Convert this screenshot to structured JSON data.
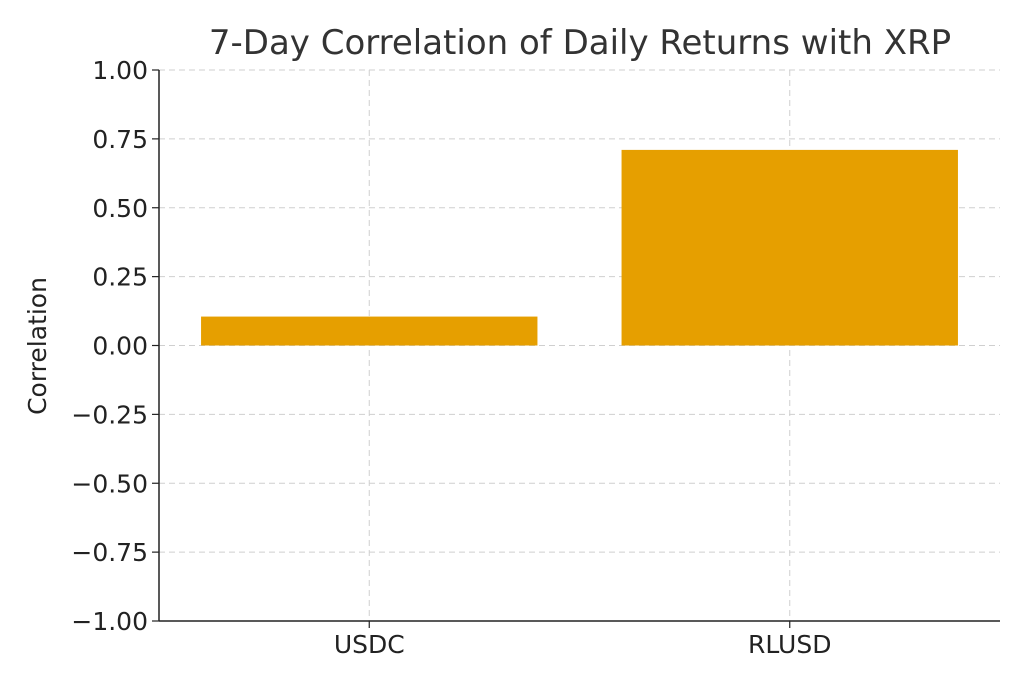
{
  "chart_data": {
    "type": "bar",
    "title": "7-Day Correlation of Daily Returns with XRP",
    "xlabel": "",
    "ylabel": "Correlation",
    "categories": [
      "USDC",
      "RLUSD"
    ],
    "values": [
      0.105,
      0.71
    ],
    "ylim": [
      -1.0,
      1.0
    ],
    "yticks": [
      1.0,
      0.75,
      0.5,
      0.25,
      0.0,
      -0.25,
      -0.5,
      -0.75,
      -1.0
    ],
    "ytick_labels": [
      "1.00",
      "0.75",
      "0.50",
      "0.25",
      "0.00",
      "−0.25",
      "−0.50",
      "−0.75",
      "−1.00"
    ],
    "grid": true,
    "bar_color": "#E69F00"
  }
}
